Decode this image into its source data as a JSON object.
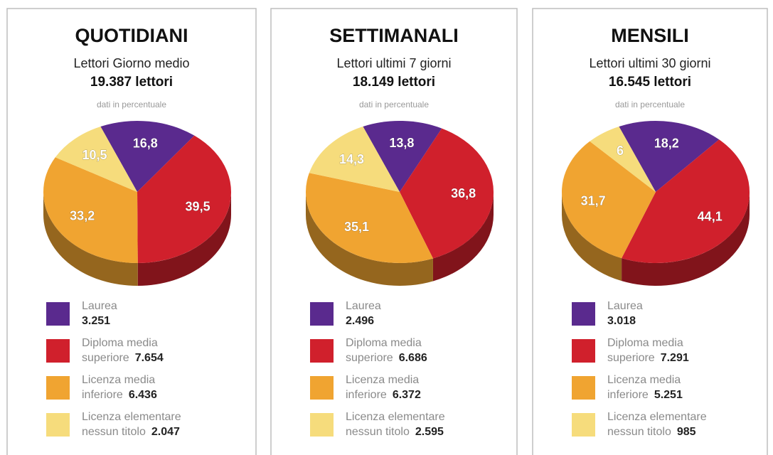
{
  "chart_data": [
    {
      "type": "pie",
      "title": "QUOTIDIANI",
      "subtitle": "Lettori Giorno medio",
      "total": "19.387 lettori",
      "note": "dati in percentuale",
      "categories": [
        [
          "Laurea"
        ],
        [
          "Diploma media",
          "superiore"
        ],
        [
          "Licenza media",
          "inferiore"
        ],
        [
          "Licenza elementare",
          "nessun titolo"
        ]
      ],
      "counts": [
        "3.251",
        "7.654",
        "6.436",
        "2.047"
      ],
      "values": [
        16.8,
        39.5,
        33.2,
        10.5
      ],
      "value_labels": [
        "16,8",
        "39,5",
        "33,2",
        "10,5"
      ],
      "colors": [
        "#5a2a8e",
        "#d0202c",
        "#f0a431",
        "#f6dc7c"
      ]
    },
    {
      "type": "pie",
      "title": "SETTIMANALI",
      "subtitle": "Lettori ultimi 7 giorni",
      "total": "18.149 lettori",
      "note": "dati in percentuale",
      "categories": [
        [
          "Laurea"
        ],
        [
          "Diploma media",
          "superiore"
        ],
        [
          "Licenza media",
          "inferiore"
        ],
        [
          "Licenza elementare",
          "nessun titolo"
        ]
      ],
      "counts": [
        "2.496",
        "6.686",
        "6.372",
        "2.595"
      ],
      "values": [
        13.8,
        36.8,
        35.1,
        14.3
      ],
      "value_labels": [
        "13,8",
        "36,8",
        "35,1",
        "14,3"
      ],
      "colors": [
        "#5a2a8e",
        "#d0202c",
        "#f0a431",
        "#f6dc7c"
      ]
    },
    {
      "type": "pie",
      "title": "MENSILI",
      "subtitle": "Lettori ultimi 30 giorni",
      "total": "16.545 lettori",
      "note": "dati in percentuale",
      "categories": [
        [
          "Laurea"
        ],
        [
          "Diploma media",
          "superiore"
        ],
        [
          "Licenza media",
          "inferiore"
        ],
        [
          "Licenza elementare",
          "nessun titolo"
        ]
      ],
      "counts": [
        "3.018",
        "7.291",
        "5.251",
        "985"
      ],
      "values": [
        18.2,
        44.1,
        31.7,
        6
      ],
      "value_labels": [
        "18,2",
        "44,1",
        "31,7",
        "6"
      ],
      "colors": [
        "#5a2a8e",
        "#d0202c",
        "#f0a431",
        "#f6dc7c"
      ]
    }
  ]
}
